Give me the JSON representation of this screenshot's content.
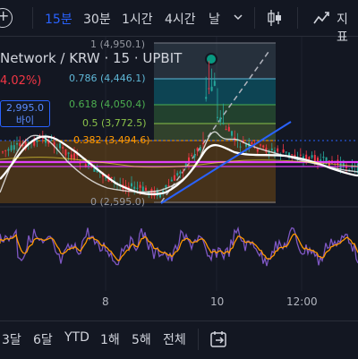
{
  "toolbar": {
    "add_label": "+",
    "intervals": [
      "15분",
      "30분",
      "1시간",
      "4시간",
      "날"
    ],
    "indicators_label": "지표"
  },
  "legend": {
    "title": "Network / KRW · 15 · UPBIT",
    "change": "4.02%)"
  },
  "price_label": {
    "price": "2,995.0",
    "text": "바이"
  },
  "fib": [
    {
      "ratio": "1",
      "price": "(4,950.1)",
      "color": "#9598a1"
    },
    {
      "ratio": "0.786",
      "price": "(4,446.1)",
      "color": "#5fb8d8"
    },
    {
      "ratio": "0.618",
      "price": "(4,050.4)",
      "color": "#4caf50"
    },
    {
      "ratio": "0.5",
      "price": "(3,772.5)",
      "color": "#8bc34a"
    },
    {
      "ratio": "0.382",
      "price": "(3,494.6)",
      "color": "#ff9800"
    },
    {
      "ratio": "0",
      "price": "(2,595.0)",
      "color": "#9598a1"
    }
  ],
  "x_axis": [
    "8",
    "10",
    "12:00"
  ],
  "bottombar": {
    "ranges": [
      "3달",
      "6달",
      "YTD",
      "1해",
      "5해",
      "전체"
    ]
  },
  "colors": {
    "accent": "#2962ff",
    "up": "#26a69a",
    "down": "#f23645",
    "background": "#131722"
  }
}
